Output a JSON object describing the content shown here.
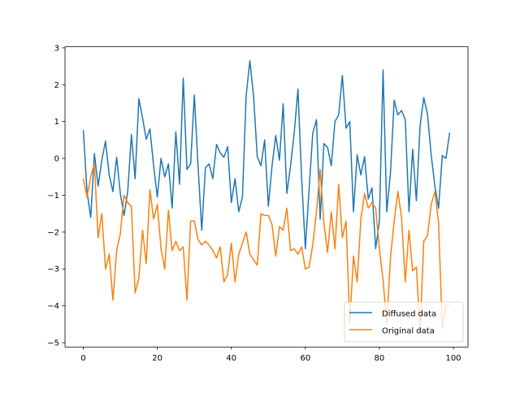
{
  "chart_data": {
    "type": "line",
    "title": "",
    "xlabel": "",
    "ylabel": "",
    "xlim": [
      -4.95,
      103.95
    ],
    "ylim": [
      -5.11,
      3.02
    ],
    "xticks": [
      0,
      20,
      40,
      60,
      80,
      100
    ],
    "yticks": [
      -5,
      -4,
      -3,
      -2,
      -1,
      0,
      1,
      2,
      3
    ],
    "grid": false,
    "legend_position": "lower-right",
    "series": [
      {
        "name": "Diffused data",
        "color": "#1f77b4",
        "values": [
          0.77,
          -0.9,
          -1.6,
          0.13,
          -0.75,
          -0.05,
          0.47,
          -0.45,
          -0.9,
          0.03,
          -0.95,
          -1.55,
          -0.9,
          0.65,
          -0.55,
          1.62,
          1.1,
          0.52,
          0.8,
          -0.2,
          -1.05,
          0.0,
          -0.5,
          -0.15,
          -1.35,
          0.72,
          -0.7,
          2.18,
          -0.3,
          -0.15,
          1.72,
          -0.2,
          -1.95,
          -0.25,
          -0.15,
          -0.55,
          0.38,
          0.15,
          0.03,
          0.32,
          -1.2,
          -0.55,
          -1.45,
          -1.05,
          1.7,
          2.65,
          1.7,
          0.05,
          -0.2,
          0.5,
          -1.3,
          -0.2,
          0.62,
          -0.05,
          1.48,
          -0.95,
          -0.2,
          0.7,
          1.88,
          -0.55,
          -2.45,
          -0.85,
          0.68,
          1.05,
          -1.65,
          0.4,
          0.3,
          -0.2,
          1.0,
          1.18,
          2.25,
          0.82,
          1.0,
          -1.45,
          0.1,
          -0.45,
          0.05,
          -1.1,
          -0.8,
          -2.45,
          -1.7,
          2.4,
          -1.45,
          -0.4,
          1.58,
          1.18,
          1.3,
          1.05,
          -1.45,
          0.25,
          -1.15,
          0.88,
          1.65,
          1.2,
          0.1,
          -0.75,
          -1.35,
          0.08,
          0.0,
          0.7
        ]
      },
      {
        "name": "Original data",
        "color": "#ff7f0e",
        "values": [
          -0.55,
          -1.05,
          -0.5,
          -0.15,
          -2.15,
          -1.5,
          -3.0,
          -2.6,
          -3.85,
          -2.5,
          -2.05,
          -1.0,
          -1.2,
          -1.3,
          -3.65,
          -3.25,
          -1.95,
          -2.85,
          -0.85,
          -1.65,
          -1.25,
          -2.45,
          -3.0,
          -1.4,
          -2.5,
          -2.25,
          -2.5,
          -2.4,
          -3.85,
          -1.7,
          -1.7,
          -2.2,
          -2.35,
          -2.25,
          -2.35,
          -2.5,
          -2.7,
          -2.4,
          -3.35,
          -3.15,
          -2.3,
          -3.35,
          -2.6,
          -2.3,
          -2.0,
          -2.6,
          -2.75,
          -2.9,
          -1.5,
          -1.55,
          -1.55,
          -1.8,
          -2.65,
          -1.85,
          -1.95,
          -1.35,
          -2.5,
          -2.45,
          -2.6,
          -2.4,
          -3.0,
          -2.95,
          -2.35,
          -1.45,
          -0.3,
          -1.75,
          -2.55,
          -1.45,
          -2.45,
          -0.7,
          -2.15,
          -1.7,
          -4.5,
          -2.65,
          -3.35,
          -1.65,
          -0.95,
          -1.35,
          -1.2,
          -1.35,
          -2.45,
          -3.3,
          -4.5,
          -2.7,
          -1.7,
          -0.9,
          -1.6,
          -3.35,
          -1.95,
          -3.05,
          -2.95,
          -4.7,
          -2.25,
          -2.1,
          -1.25,
          -0.9,
          -1.75,
          -4.6,
          -4.0,
          -3.95
        ]
      }
    ]
  }
}
